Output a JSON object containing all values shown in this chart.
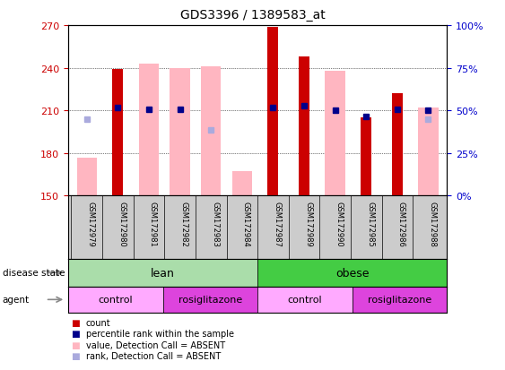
{
  "title": "GDS3396 / 1389583_at",
  "samples": [
    "GSM172979",
    "GSM172980",
    "GSM172981",
    "GSM172982",
    "GSM172983",
    "GSM172984",
    "GSM172987",
    "GSM172989",
    "GSM172990",
    "GSM172985",
    "GSM172986",
    "GSM172988"
  ],
  "ylim_left": [
    150,
    270
  ],
  "ylim_right": [
    0,
    100
  ],
  "yticks_left": [
    150,
    180,
    210,
    240,
    270
  ],
  "yticks_right": [
    0,
    25,
    50,
    75,
    100
  ],
  "ytick_labels_right": [
    "0%",
    "25%",
    "50%",
    "75%",
    "100%"
  ],
  "red_bars": [
    null,
    239,
    null,
    null,
    null,
    null,
    269,
    248,
    null,
    205,
    222,
    null
  ],
  "pink_bars": [
    177,
    null,
    243,
    240,
    241,
    167,
    null,
    null,
    238,
    null,
    null,
    212
  ],
  "blue_squares": [
    null,
    212,
    211,
    211,
    null,
    null,
    212,
    213,
    210,
    206,
    211,
    210
  ],
  "light_blue_squares": [
    204,
    null,
    null,
    null,
    196,
    null,
    null,
    null,
    null,
    null,
    null,
    204
  ],
  "disease_state_groups": [
    {
      "label": "lean",
      "start": 0,
      "end": 6,
      "color": "#aaddaa"
    },
    {
      "label": "obese",
      "start": 6,
      "end": 12,
      "color": "#44cc44"
    }
  ],
  "agent_groups": [
    {
      "label": "control",
      "start": 0,
      "end": 3,
      "color": "#ffaaff"
    },
    {
      "label": "rosiglitazone",
      "start": 3,
      "end": 6,
      "color": "#dd44dd"
    },
    {
      "label": "control",
      "start": 6,
      "end": 9,
      "color": "#ffaaff"
    },
    {
      "label": "rosiglitazone",
      "start": 9,
      "end": 12,
      "color": "#dd44dd"
    }
  ],
  "red_color": "#cc0000",
  "pink_color": "#ffb6c1",
  "blue_color": "#00008b",
  "light_blue_color": "#aaaadd",
  "tick_color_left": "#cc0000",
  "tick_color_right": "#0000cc",
  "sample_bg": "#cccccc",
  "plot_bg": "#ffffff"
}
